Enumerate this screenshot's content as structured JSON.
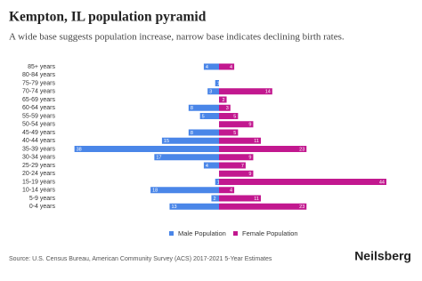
{
  "chart_data": {
    "type": "pyramid",
    "title": "Kempton, IL population pyramid",
    "subtitle": "A wide base suggests population increase, narrow base indicates declining birth rates.",
    "categories": [
      "85+ years",
      "80-84 years",
      "75-79 years",
      "70-74 years",
      "65-69 years",
      "60-64 years",
      "55-59 years",
      "50-54 years",
      "45-49 years",
      "40-44 years",
      "35-39 years",
      "30-34 years",
      "25-29 years",
      "20-24 years",
      "15-19 years",
      "10-14 years",
      "5-9 years",
      "0-4 years"
    ],
    "series": [
      {
        "name": "Male Population",
        "color": "#4a86e8",
        "values": [
          4,
          0,
          1,
          3,
          0,
          8,
          5,
          0,
          8,
          15,
          38,
          17,
          4,
          0,
          1,
          18,
          2,
          13
        ]
      },
      {
        "name": "Female Population",
        "color": "#c2188f",
        "values": [
          4,
          0,
          0,
          14,
          2,
          3,
          5,
          9,
          5,
          11,
          23,
          9,
          7,
          9,
          44,
          4,
          11,
          23
        ]
      }
    ]
  },
  "footer": {
    "source": "Source: U.S. Census Bureau, American Community Survey (ACS) 2017-2021 5-Year Estimates",
    "brand": "Neilsberg"
  }
}
